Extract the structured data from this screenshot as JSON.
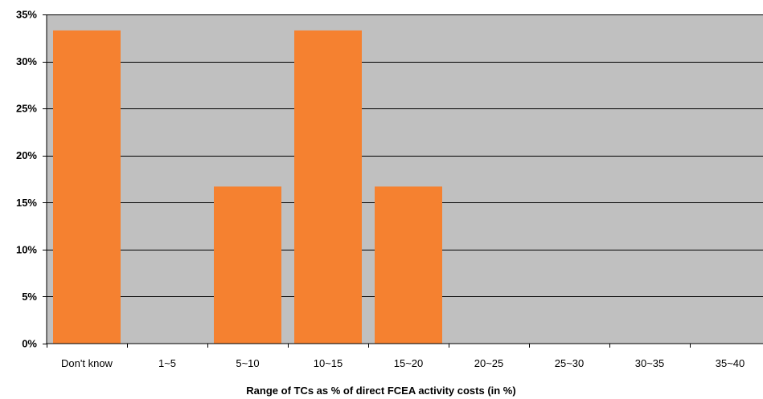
{
  "chart_data": {
    "type": "bar",
    "title": "",
    "xlabel": "Range of TCs as % of direct FCEA activity costs (in %)",
    "ylabel": "",
    "categories": [
      "Don't know",
      "1~5",
      "5~10",
      "10~15",
      "15~20",
      "20~25",
      "25~30",
      "30~35",
      "35~40"
    ],
    "values": [
      33.3,
      0,
      16.7,
      33.3,
      16.7,
      0,
      0,
      0,
      0
    ],
    "ylim": [
      0,
      35
    ],
    "yticks": [
      0,
      5,
      10,
      15,
      20,
      25,
      30,
      35
    ],
    "ytick_labels": [
      "0%",
      "5%",
      "10%",
      "15%",
      "20%",
      "25%",
      "30%",
      "35%"
    ],
    "grid": true,
    "legend": "none",
    "colors": {
      "bar": "#F58130",
      "plot_background": "#C0C0C0",
      "gridline": "#000000",
      "axis": "#000000"
    }
  }
}
